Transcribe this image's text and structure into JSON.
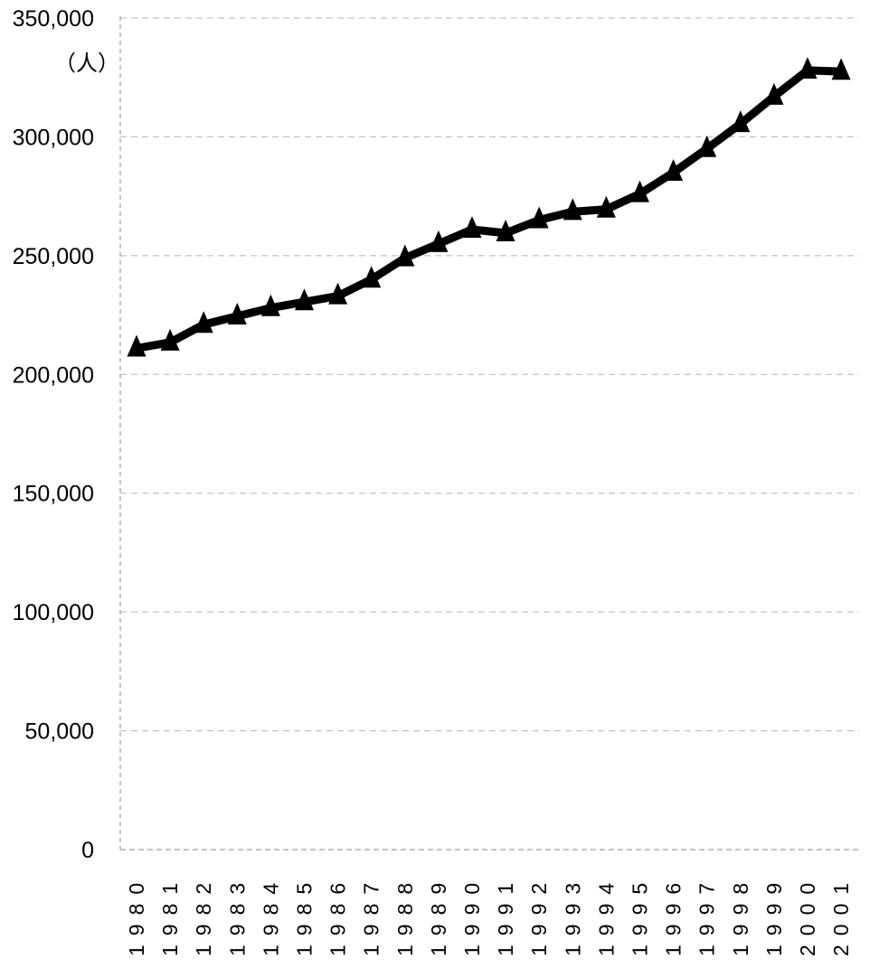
{
  "chart_data": {
    "type": "line",
    "title": "",
    "xlabel": "",
    "ylabel": "",
    "y_unit": "（人）",
    "ylim": [
      0,
      350000
    ],
    "yticks": [
      0,
      50000,
      100000,
      150000,
      200000,
      250000,
      300000,
      350000
    ],
    "ytick_labels": [
      "0",
      "50,000",
      "100,000",
      "150,000",
      "200,000",
      "250,000",
      "300,000",
      "350,000"
    ],
    "grid": true,
    "legend": "none",
    "marker": "triangle",
    "line_color": "#000000",
    "categories": [
      "1980",
      "1981",
      "1982",
      "1983",
      "1984",
      "1985",
      "1986",
      "1987",
      "1988",
      "1989",
      "1990",
      "1991",
      "1992",
      "1993",
      "1994",
      "1995",
      "1996",
      "1997",
      "1998",
      "1999",
      "2000",
      "2001"
    ],
    "series": [
      {
        "values": [
          211000,
          213500,
          221000,
          224500,
          228000,
          230500,
          233000,
          240000,
          249000,
          255000,
          261000,
          259500,
          265000,
          268500,
          269500,
          276000,
          285000,
          295000,
          305500,
          317000,
          328000,
          327500
        ]
      }
    ]
  }
}
